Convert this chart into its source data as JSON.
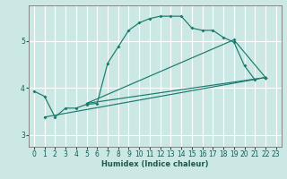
{
  "title": "",
  "xlabel": "Humidex (Indice chaleur)",
  "background_color": "#cce8e5",
  "grid_color": "#ffffff",
  "line_color": "#1a7a6e",
  "xlim": [
    -0.5,
    23.5
  ],
  "ylim": [
    2.75,
    5.75
  ],
  "xticks": [
    0,
    1,
    2,
    3,
    4,
    5,
    6,
    7,
    8,
    9,
    10,
    11,
    12,
    13,
    14,
    15,
    16,
    17,
    18,
    19,
    20,
    21,
    22,
    23
  ],
  "yticks": [
    3,
    4,
    5
  ],
  "series": [
    {
      "x": [
        0,
        1,
        2,
        3,
        4,
        5,
        6,
        7,
        8,
        9,
        10,
        11,
        12,
        13,
        14,
        15,
        16,
        17,
        18,
        19,
        20,
        21
      ],
      "y": [
        3.93,
        3.82,
        3.38,
        3.57,
        3.57,
        3.65,
        3.67,
        4.52,
        4.87,
        5.22,
        5.38,
        5.47,
        5.52,
        5.52,
        5.52,
        5.27,
        5.22,
        5.22,
        5.07,
        4.97,
        4.47,
        4.17
      ]
    },
    {
      "x": [
        5,
        19,
        22
      ],
      "y": [
        3.67,
        5.02,
        4.22
      ]
    },
    {
      "x": [
        5,
        22
      ],
      "y": [
        3.67,
        4.22
      ]
    },
    {
      "x": [
        1,
        22
      ],
      "y": [
        3.38,
        4.22
      ]
    }
  ]
}
